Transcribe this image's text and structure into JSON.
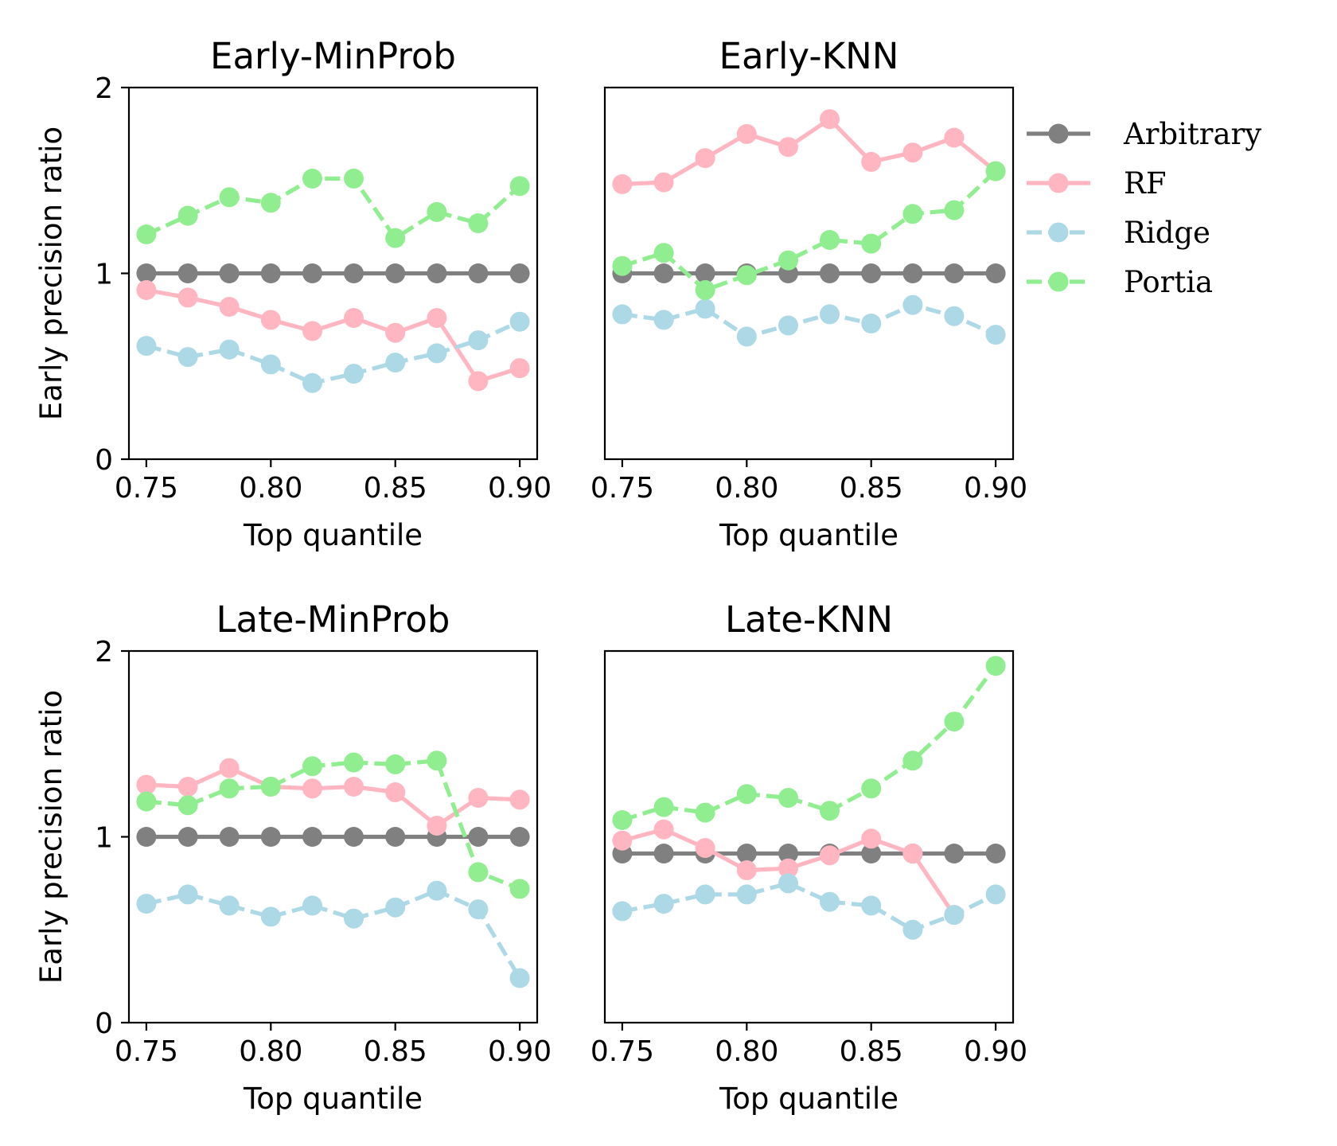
{
  "chart_data": [
    {
      "type": "line",
      "title": "Early-MinProb",
      "xlabel": "Top quantile",
      "ylabel": "Early precision ratio",
      "xlim": [
        0.743,
        0.907
      ],
      "ylim": [
        0,
        2
      ],
      "xticks": [
        "0.75",
        "0.80",
        "0.85",
        "0.90"
      ],
      "yticks": [
        "0",
        "1",
        "2"
      ],
      "x": [
        0.75,
        0.7667,
        0.7833,
        0.8,
        0.8167,
        0.8333,
        0.85,
        0.8667,
        0.8833,
        0.9
      ],
      "series": [
        {
          "name": "Arbitrary",
          "values": [
            1.0,
            1.0,
            1.0,
            1.0,
            1.0,
            1.0,
            1.0,
            1.0,
            1.0,
            1.0
          ]
        },
        {
          "name": "RF",
          "values": [
            0.91,
            0.87,
            0.82,
            0.75,
            0.69,
            0.76,
            0.68,
            0.76,
            0.42,
            0.49
          ]
        },
        {
          "name": "Ridge",
          "values": [
            0.61,
            0.55,
            0.59,
            0.51,
            0.41,
            0.46,
            0.52,
            0.57,
            0.64,
            0.74
          ]
        },
        {
          "name": "Portia",
          "values": [
            1.21,
            1.31,
            1.41,
            1.38,
            1.51,
            1.51,
            1.19,
            1.33,
            1.27,
            1.47
          ]
        }
      ]
    },
    {
      "type": "line",
      "title": "Early-KNN",
      "xlabel": "Top quantile",
      "ylabel": "",
      "xlim": [
        0.743,
        0.907
      ],
      "ylim": [
        0,
        2
      ],
      "xticks": [
        "0.75",
        "0.80",
        "0.85",
        "0.90"
      ],
      "yticks": [],
      "x": [
        0.75,
        0.7667,
        0.7833,
        0.8,
        0.8167,
        0.8333,
        0.85,
        0.8667,
        0.8833,
        0.9
      ],
      "series": [
        {
          "name": "Arbitrary",
          "values": [
            1.0,
            1.0,
            1.0,
            1.0,
            1.0,
            1.0,
            1.0,
            1.0,
            1.0,
            1.0
          ]
        },
        {
          "name": "RF",
          "values": [
            1.48,
            1.49,
            1.62,
            1.75,
            1.68,
            1.83,
            1.6,
            1.65,
            1.73,
            1.55
          ]
        },
        {
          "name": "Ridge",
          "values": [
            0.78,
            0.75,
            0.81,
            0.66,
            0.72,
            0.78,
            0.73,
            0.83,
            0.77,
            0.67
          ]
        },
        {
          "name": "Portia",
          "values": [
            1.04,
            1.11,
            0.91,
            0.99,
            1.07,
            1.18,
            1.16,
            1.32,
            1.34,
            1.55
          ]
        }
      ]
    },
    {
      "type": "line",
      "title": "Late-MinProb",
      "xlabel": "Top quantile",
      "ylabel": "Early precision ratio",
      "xlim": [
        0.743,
        0.907
      ],
      "ylim": [
        0,
        2
      ],
      "xticks": [
        "0.75",
        "0.80",
        "0.85",
        "0.90"
      ],
      "yticks": [
        "0",
        "1",
        "2"
      ],
      "x": [
        0.75,
        0.7667,
        0.7833,
        0.8,
        0.8167,
        0.8333,
        0.85,
        0.8667,
        0.8833,
        0.9
      ],
      "series": [
        {
          "name": "Arbitrary",
          "values": [
            1.0,
            1.0,
            1.0,
            1.0,
            1.0,
            1.0,
            1.0,
            1.0,
            1.0,
            1.0
          ]
        },
        {
          "name": "RF",
          "values": [
            1.28,
            1.27,
            1.37,
            1.27,
            1.26,
            1.27,
            1.24,
            1.06,
            1.21,
            1.2
          ]
        },
        {
          "name": "Ridge",
          "values": [
            0.64,
            0.69,
            0.63,
            0.57,
            0.63,
            0.56,
            0.62,
            0.71,
            0.61,
            0.24
          ]
        },
        {
          "name": "Portia",
          "values": [
            1.19,
            1.17,
            1.26,
            1.27,
            1.38,
            1.4,
            1.39,
            1.41,
            0.81,
            0.72
          ]
        }
      ]
    },
    {
      "type": "line",
      "title": "Late-KNN",
      "xlabel": "Top quantile",
      "ylabel": "",
      "xlim": [
        0.743,
        0.907
      ],
      "ylim": [
        0,
        2
      ],
      "xticks": [
        "0.75",
        "0.80",
        "0.85",
        "0.90"
      ],
      "yticks": [],
      "x": [
        0.75,
        0.7667,
        0.7833,
        0.8,
        0.8167,
        0.8333,
        0.85,
        0.8667,
        0.8833,
        0.9
      ],
      "series": [
        {
          "name": "Arbitrary",
          "values": [
            0.91,
            0.91,
            0.91,
            0.91,
            0.91,
            0.91,
            0.91,
            0.91,
            0.91,
            0.91
          ]
        },
        {
          "name": "RF",
          "values": [
            0.98,
            1.04,
            0.94,
            0.82,
            0.83,
            0.9,
            0.99,
            0.91,
            0.58,
            null
          ]
        },
        {
          "name": "Ridge",
          "values": [
            0.6,
            0.64,
            0.69,
            0.69,
            0.75,
            0.65,
            0.63,
            0.5,
            0.58,
            0.69
          ]
        },
        {
          "name": "Portia",
          "values": [
            1.09,
            1.16,
            1.13,
            1.23,
            1.21,
            1.14,
            1.26,
            1.41,
            1.62,
            1.92
          ]
        }
      ]
    }
  ],
  "legend": {
    "placement": "right",
    "entries": [
      {
        "label": "Arbitrary",
        "color": "#808080",
        "dash": "solid"
      },
      {
        "label": "RF",
        "color": "#ffb6c1",
        "dash": "solid"
      },
      {
        "label": "Ridge",
        "color": "#add8e6",
        "dash": "dashed"
      },
      {
        "label": "Portia",
        "color": "#90ee90",
        "dash": "dashed"
      }
    ]
  }
}
